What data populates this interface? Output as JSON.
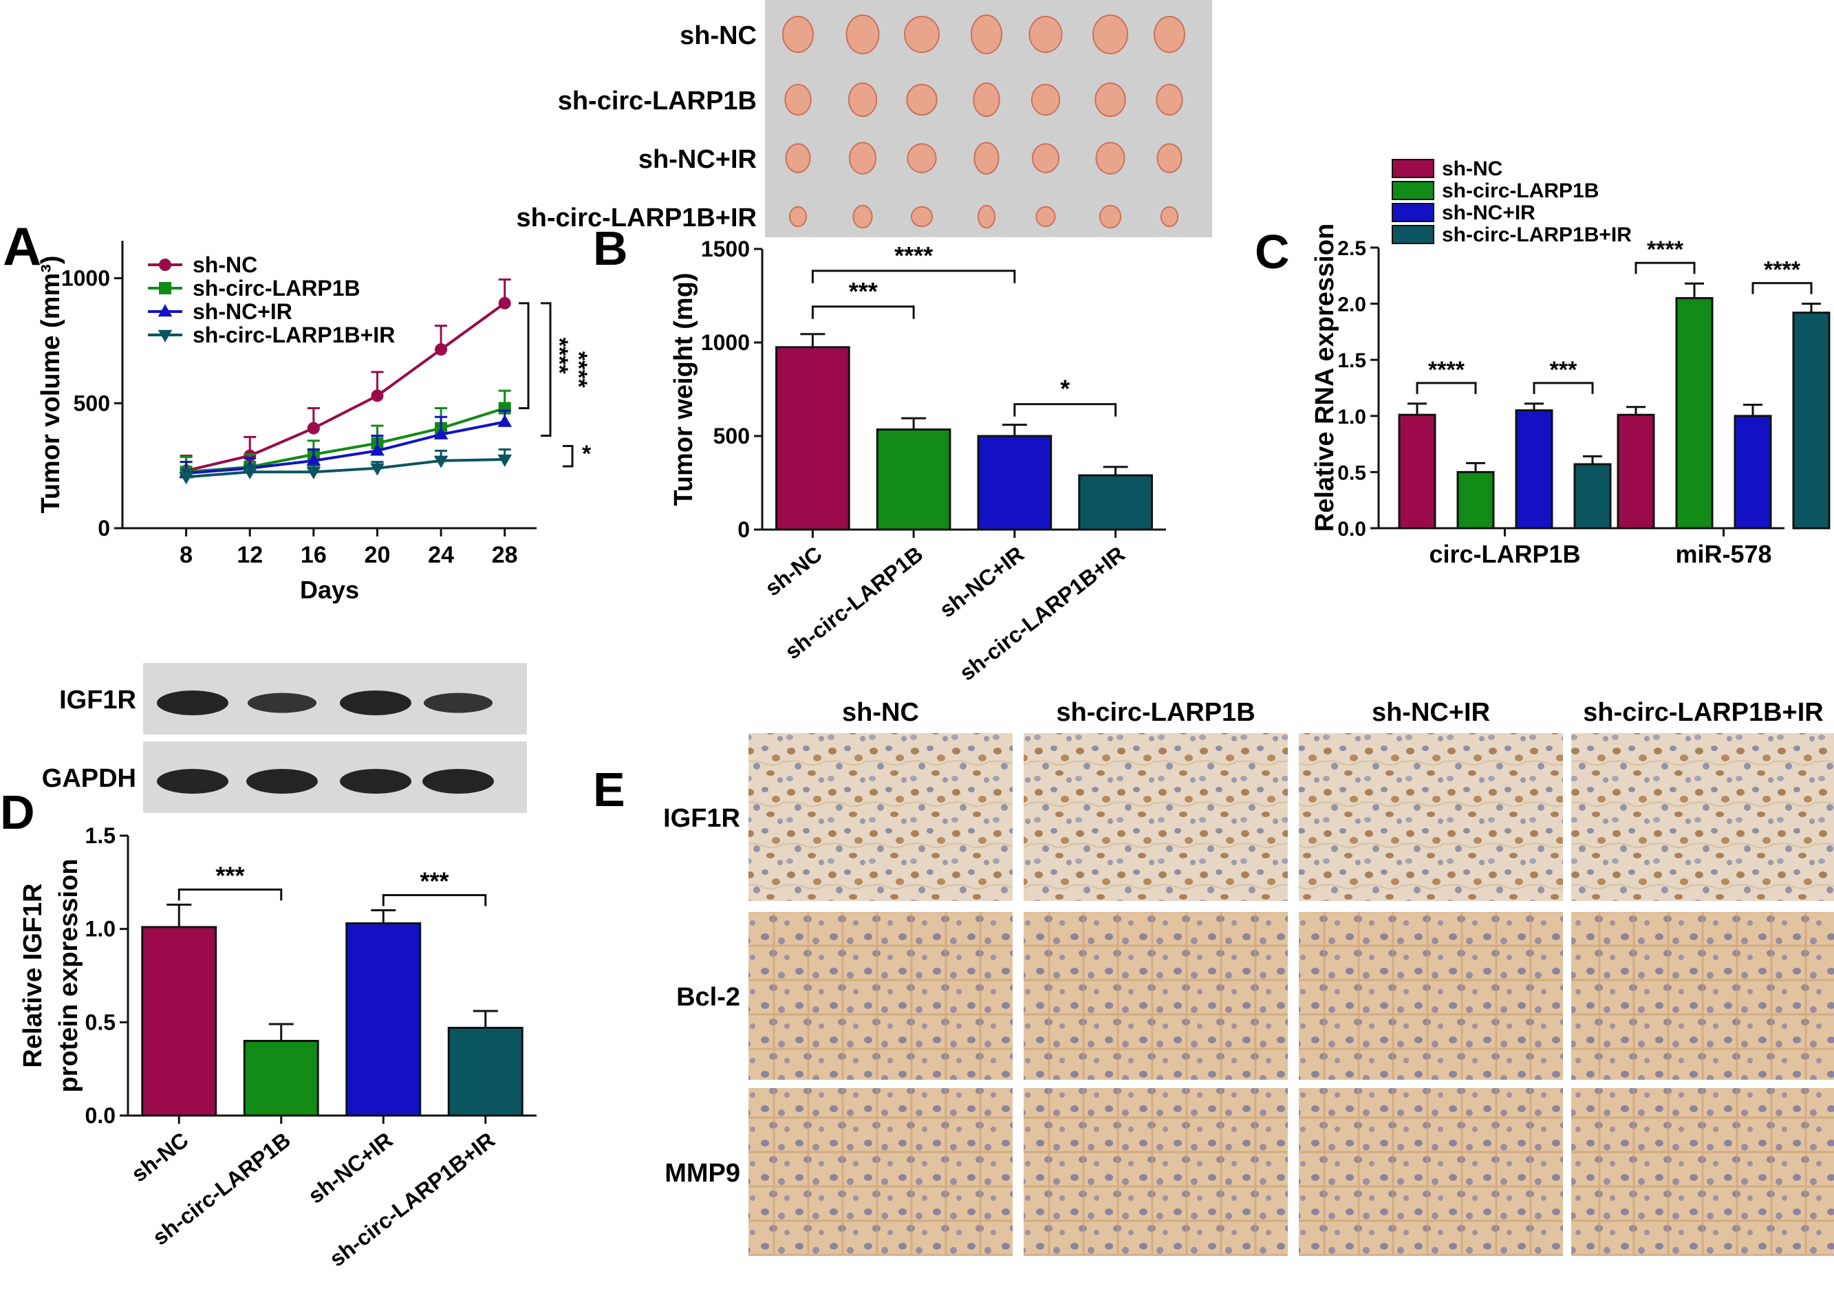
{
  "colors": {
    "sh_nc": "#9b0a4b",
    "sh_circ": "#118a16",
    "sh_nc_ir": "#1212c4",
    "sh_circ_ir": "#0b5560",
    "text": "#111111",
    "photo_bg": "#cfcfcf",
    "tumor": "#e9a48c",
    "blot_bg": "#d9d9d9",
    "band": "#1a1a1a",
    "ihc_bg": "#e5d3be",
    "ihc_brown": "#9b6a3e",
    "ihc_blue": "#6a6f96"
  },
  "panel_letters": {
    "a": "A",
    "b": "B",
    "c": "C",
    "d": "D",
    "e": "E"
  },
  "tumor_photo": {
    "rows": [
      "sh-NC",
      "sh-circ-LARP1B",
      "sh-NC+IR",
      "sh-circ-LARP1B+IR"
    ],
    "tumors_per_row": 7,
    "relative_size": [
      1.0,
      0.85,
      0.8,
      0.55
    ]
  },
  "western_blot": {
    "rows": [
      "IGF1R",
      "GAPDH"
    ],
    "lanes": 4,
    "igf1r_intensity": [
      1.0,
      0.75,
      1.0,
      0.75
    ],
    "gapdh_intensity": [
      1.0,
      1.0,
      1.0,
      1.0
    ]
  },
  "ihc": {
    "columns": [
      "sh-NC",
      "sh-circ-LARP1B",
      "sh-NC+IR",
      "sh-circ-LARP1B+IR"
    ],
    "rows": [
      "IGF1R",
      "Bcl-2",
      "MMP9"
    ]
  },
  "chart_data": [
    {
      "panel": "A",
      "type": "line",
      "xlabel": "Days",
      "ylabel": "Tumor volume (mm³)",
      "x": [
        8,
        12,
        16,
        20,
        24,
        28
      ],
      "xticks": [
        8,
        12,
        16,
        20,
        24,
        28
      ],
      "ylim": [
        0,
        1150
      ],
      "yticks": [
        0,
        500,
        1000
      ],
      "series": [
        {
          "name": "sh-NC",
          "marker": "circle",
          "values": [
            230,
            290,
            400,
            530,
            715,
            900
          ],
          "errors": [
            60,
            75,
            80,
            95,
            95,
            95
          ]
        },
        {
          "name": "sh-circ-LARP1B",
          "marker": "square",
          "values": [
            225,
            245,
            295,
            340,
            400,
            480
          ],
          "errors": [
            60,
            50,
            55,
            70,
            80,
            70
          ]
        },
        {
          "name": "sh-NC+IR",
          "marker": "triangle-up",
          "values": [
            220,
            240,
            270,
            310,
            375,
            425
          ],
          "errors": [
            45,
            40,
            45,
            60,
            70,
            45
          ]
        },
        {
          "name": "sh-circ-LARP1B+IR",
          "marker": "triangle-down",
          "values": [
            205,
            225,
            225,
            240,
            270,
            275
          ],
          "errors": [
            30,
            25,
            25,
            25,
            40,
            40
          ]
        }
      ],
      "significance": [
        "****",
        "****",
        "*"
      ]
    },
    {
      "panel": "B",
      "type": "bar",
      "ylabel": "Tumor weight (mg)",
      "categories": [
        "sh-NC",
        "sh-circ-LARP1B",
        "sh-NC+IR",
        "sh-circ-LARP1B+IR"
      ],
      "values": [
        975,
        535,
        500,
        290
      ],
      "errors": [
        70,
        60,
        60,
        45
      ],
      "ylim": [
        0,
        1500
      ],
      "yticks": [
        0,
        500,
        1000,
        1500
      ],
      "significance": [
        {
          "from": 0,
          "to": 1,
          "label": "***"
        },
        {
          "from": 0,
          "to": 2,
          "label": "****"
        },
        {
          "from": 2,
          "to": 3,
          "label": "*"
        }
      ]
    },
    {
      "panel": "C",
      "type": "bar",
      "ylabel": "Relative RNA expression",
      "groups": [
        "circ-LARP1B",
        "miR-578"
      ],
      "series": [
        {
          "name": "sh-NC",
          "values": [
            1.01,
            1.01
          ],
          "errors": [
            0.1,
            0.07
          ]
        },
        {
          "name": "sh-circ-LARP1B",
          "values": [
            0.5,
            2.05
          ],
          "errors": [
            0.08,
            0.13
          ]
        },
        {
          "name": "sh-NC+IR",
          "values": [
            1.05,
            1.0
          ],
          "errors": [
            0.06,
            0.1
          ]
        },
        {
          "name": "sh-circ-LARP1B+IR",
          "values": [
            0.57,
            1.92
          ],
          "errors": [
            0.07,
            0.08
          ]
        }
      ],
      "ylim": [
        0,
        2.5
      ],
      "yticks": [
        "0.0",
        "0.5",
        "1.0",
        "1.5",
        "2.0",
        "2.5"
      ],
      "legend": "top-left",
      "significance": [
        {
          "group": 0,
          "from": 0,
          "to": 1,
          "label": "****"
        },
        {
          "group": 0,
          "from": 2,
          "to": 3,
          "label": "***"
        },
        {
          "group": 1,
          "from": 0,
          "to": 1,
          "label": "****"
        },
        {
          "group": 1,
          "from": 2,
          "to": 3,
          "label": "****"
        }
      ]
    },
    {
      "panel": "D",
      "type": "bar",
      "ylabel": [
        "Relative IGF1R",
        "protein expression"
      ],
      "categories": [
        "sh-NC",
        "sh-circ-LARP1B",
        "sh-NC+IR",
        "sh-circ-LARP1B+IR"
      ],
      "values": [
        1.01,
        0.4,
        1.03,
        0.47
      ],
      "errors": [
        0.12,
        0.09,
        0.07,
        0.09
      ],
      "ylim": [
        0,
        1.5
      ],
      "yticks": [
        "0.0",
        "0.5",
        "1.0",
        "1.5"
      ],
      "significance": [
        {
          "from": 0,
          "to": 1,
          "label": "***"
        },
        {
          "from": 2,
          "to": 3,
          "label": "***"
        }
      ]
    }
  ]
}
